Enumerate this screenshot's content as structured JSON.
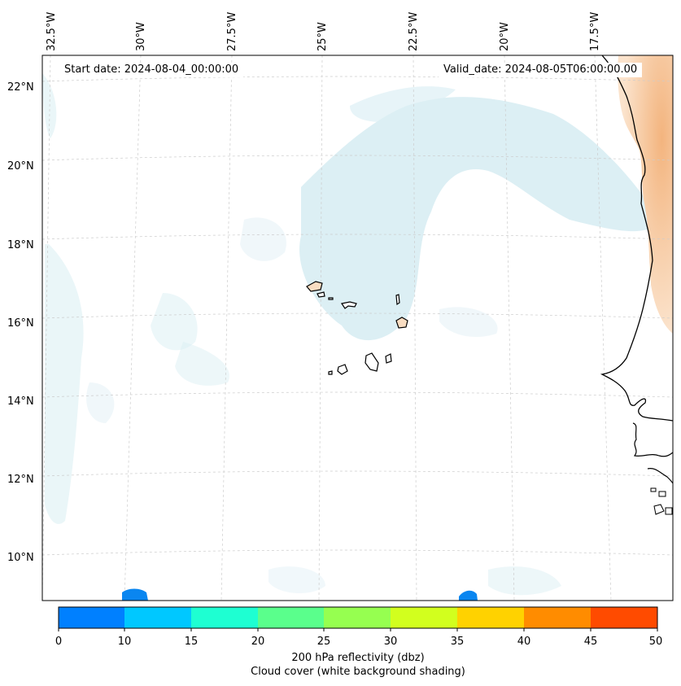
{
  "header": {
    "start_date": "Start date: 2024-08-04_00:00:00",
    "valid_date": "Valid_date: 2024-08-05T06:00:00.00"
  },
  "longitude_labels": [
    "32.5°W",
    "30°W",
    "27.5°W",
    "25°W",
    "22.5°W",
    "20°W",
    "17.5°W"
  ],
  "latitude_labels": [
    "22°N",
    "20°N",
    "18°N",
    "16°N",
    "14°N",
    "12°N",
    "10°N"
  ],
  "colorbar": {
    "ticks": [
      "0",
      "10",
      "15",
      "20",
      "25",
      "30",
      "35",
      "40",
      "45",
      "50"
    ],
    "colors": [
      "#0080ff",
      "#00c8ff",
      "#1effd2",
      "#5aff8c",
      "#96ff50",
      "#d2ff1e",
      "#ffd200",
      "#ff8c00",
      "#ff4b00"
    ],
    "label_line1": "200 hPa reflectivity (dbz)",
    "label_line2": "Cloud cover (white background shading)"
  },
  "map_colors": {
    "cloud_shading": "#cfe8ef",
    "land_warm": "#f6c79a",
    "reflectivity_blue": "#0a86f0",
    "coastline": "#000000",
    "gridline": "#c8c8c8"
  }
}
